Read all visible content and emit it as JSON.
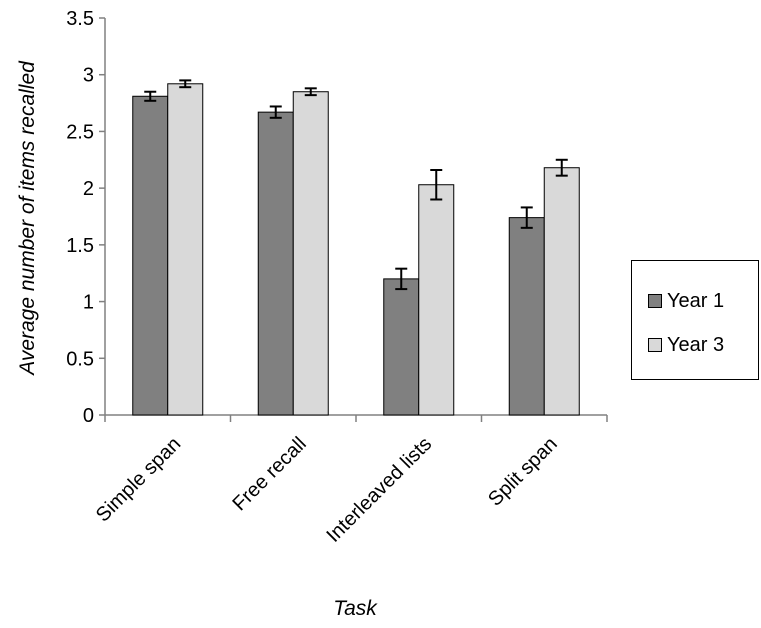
{
  "chart_data": {
    "type": "bar",
    "title": "",
    "xlabel": "Task",
    "ylabel": "Average number of items recalled",
    "ylim": [
      0,
      3.5
    ],
    "yticks": [
      "0",
      "0.5",
      "1",
      "1.5",
      "2",
      "2.5",
      "3",
      "3.5"
    ],
    "categories": [
      "Simple span",
      "Free recall",
      "Interleaved lists",
      "Split span"
    ],
    "series": [
      {
        "name": "Year 1",
        "color": "#808080",
        "values": [
          2.81,
          2.67,
          1.2,
          1.74
        ],
        "errors": [
          0.04,
          0.05,
          0.09,
          0.09
        ]
      },
      {
        "name": "Year 3",
        "color": "#d9d9d9",
        "values": [
          2.92,
          2.85,
          2.03,
          2.18
        ],
        "errors": [
          0.03,
          0.03,
          0.13,
          0.07
        ]
      }
    ],
    "grid": false,
    "legend_position": "right"
  }
}
